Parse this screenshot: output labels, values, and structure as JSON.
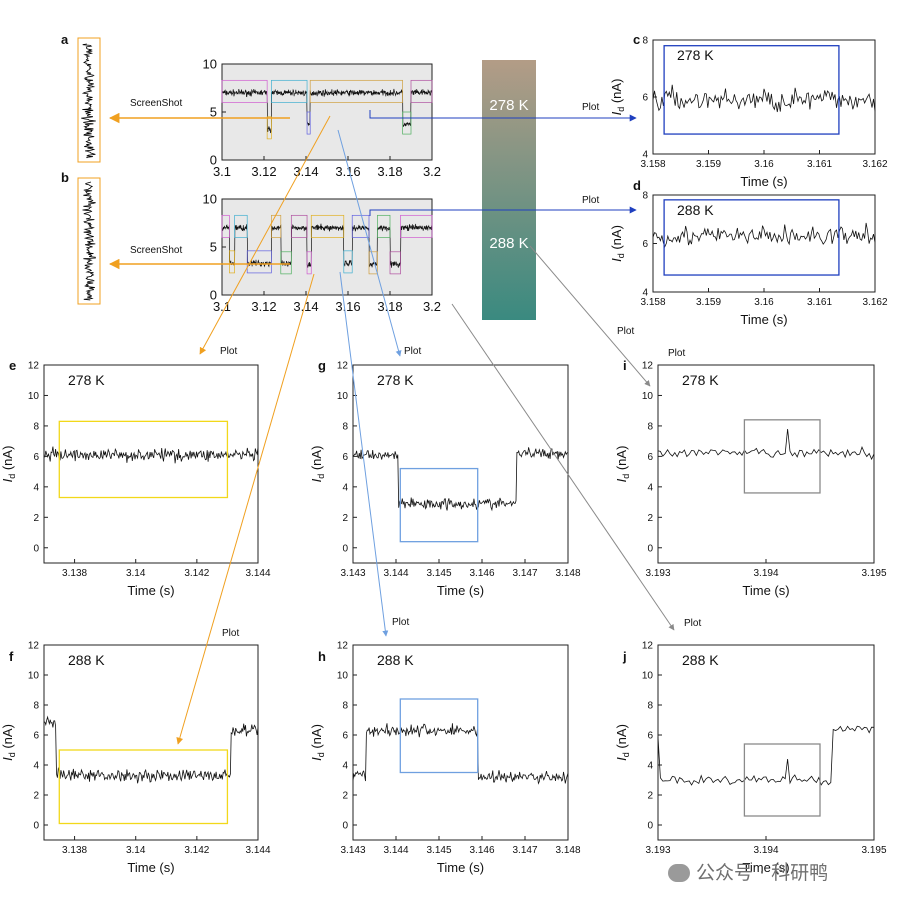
{
  "panel_letters": [
    "a",
    "b",
    "c",
    "d",
    "e",
    "f",
    "g",
    "h",
    "i",
    "j"
  ],
  "annotations": {
    "screenshot": "ScreenShot",
    "plot": "Plot"
  },
  "temperature_bar": {
    "top_label": "278 K",
    "bottom_label": "288 K",
    "top_color": "#b39c86",
    "bottom_color": "#3a8a80"
  },
  "watermark": "公众号 · 科研鸭",
  "colors": {
    "yellow": "#f2d81a",
    "orange": "#f0a020",
    "blue": "#1f3fbf",
    "light_blue": "#6fa0e0",
    "gray": "#8a8a8a"
  },
  "chart_data": [
    {
      "id": "overview-278",
      "type": "line",
      "xlim": [
        3.1,
        3.2
      ],
      "ylim": [
        0,
        10
      ],
      "xticks": [
        "3.1",
        "3.12",
        "3.14",
        "3.16",
        "3.18",
        "3.2"
      ],
      "yticks": [
        "0",
        "5",
        "10"
      ],
      "levels": [
        {
          "x0": 3.1,
          "x1": 3.1215,
          "y": 7.0
        },
        {
          "x0": 3.1215,
          "x1": 3.1235,
          "y": 3.2
        },
        {
          "x0": 3.1235,
          "x1": 3.1405,
          "y": 7.0
        },
        {
          "x0": 3.1405,
          "x1": 3.142,
          "y": 3.7
        },
        {
          "x0": 3.142,
          "x1": 3.186,
          "y": 7.0
        },
        {
          "x0": 3.186,
          "x1": 3.19,
          "y": 3.7
        },
        {
          "x0": 3.19,
          "x1": 3.2,
          "y": 7.0
        }
      ]
    },
    {
      "id": "overview-288",
      "type": "line",
      "xlim": [
        3.1,
        3.2
      ],
      "ylim": [
        0,
        10
      ],
      "xticks": [
        "3.1",
        "3.12",
        "3.14",
        "3.16",
        "3.18",
        "3.2"
      ],
      "yticks": [
        "0",
        "5",
        "10"
      ],
      "levels": [
        {
          "x0": 3.1,
          "x1": 3.1035,
          "y": 7.0
        },
        {
          "x0": 3.1035,
          "x1": 3.106,
          "y": 3.3
        },
        {
          "x0": 3.106,
          "x1": 3.112,
          "y": 7.0
        },
        {
          "x0": 3.112,
          "x1": 3.1235,
          "y": 3.3
        },
        {
          "x0": 3.1235,
          "x1": 3.128,
          "y": 7.0
        },
        {
          "x0": 3.128,
          "x1": 3.133,
          "y": 3.2
        },
        {
          "x0": 3.133,
          "x1": 3.1405,
          "y": 7.0
        },
        {
          "x0": 3.1405,
          "x1": 3.1425,
          "y": 3.2
        },
        {
          "x0": 3.1425,
          "x1": 3.158,
          "y": 7.0
        },
        {
          "x0": 3.158,
          "x1": 3.162,
          "y": 3.3
        },
        {
          "x0": 3.162,
          "x1": 3.17,
          "y": 7.0
        },
        {
          "x0": 3.17,
          "x1": 3.174,
          "y": 3.2
        },
        {
          "x0": 3.174,
          "x1": 3.18,
          "y": 7.0
        },
        {
          "x0": 3.18,
          "x1": 3.185,
          "y": 3.2
        },
        {
          "x0": 3.185,
          "x1": 3.2,
          "y": 7.0
        }
      ]
    },
    {
      "id": "c",
      "type": "line",
      "label": "278 K",
      "xlabel": "Time (s)",
      "ylabel": "Id (nA)",
      "xlim": [
        3.158,
        3.162
      ],
      "ylim": [
        4,
        8
      ],
      "xticks": [
        "3.158",
        "3.159",
        "3.16",
        "3.161",
        "3.162"
      ],
      "yticks": [
        "4",
        "6",
        "8"
      ],
      "levels": [
        {
          "x0": 3.158,
          "x1": 3.162,
          "y": 5.9
        }
      ],
      "noise": 0.45,
      "box": {
        "x0": 3.1582,
        "x1": 3.16135,
        "y0": 4.7,
        "y1": 7.8,
        "color": "#1f3fbf"
      }
    },
    {
      "id": "d",
      "type": "line",
      "label": "288 K",
      "xlabel": "Time (s)",
      "ylabel": "Id (nA)",
      "xlim": [
        3.158,
        3.162
      ],
      "ylim": [
        4,
        8
      ],
      "xticks": [
        "3.158",
        "3.159",
        "3.16",
        "3.161",
        "3.162"
      ],
      "yticks": [
        "4",
        "6",
        "8"
      ],
      "levels": [
        {
          "x0": 3.158,
          "x1": 3.162,
          "y": 6.3
        }
      ],
      "noise": 0.45,
      "box": {
        "x0": 3.1582,
        "x1": 3.16135,
        "y0": 4.7,
        "y1": 7.8,
        "color": "#1f3fbf"
      }
    },
    {
      "id": "e",
      "type": "line",
      "label": "278 K",
      "xlabel": "Time (s)",
      "ylabel": "Id (nA)",
      "xlim": [
        3.137,
        3.144
      ],
      "ylim": [
        -1,
        12
      ],
      "xticks": [
        "3.138",
        "3.14",
        "3.142",
        "3.144"
      ],
      "yticks": [
        "0",
        "2",
        "4",
        "6",
        "8",
        "10",
        "12"
      ],
      "levels": [
        {
          "x0": 3.137,
          "x1": 3.144,
          "y": 6.1
        }
      ],
      "noise": 0.45,
      "box": {
        "x0": 3.1375,
        "x1": 3.143,
        "y0": 3.3,
        "y1": 8.3,
        "color": "#f2d81a"
      }
    },
    {
      "id": "f",
      "type": "line",
      "label": "288 K",
      "xlabel": "Time (s)",
      "ylabel": "Id (nA)",
      "xlim": [
        3.137,
        3.144
      ],
      "ylim": [
        -1,
        12
      ],
      "xticks": [
        "3.138",
        "3.14",
        "3.142",
        "3.144"
      ],
      "yticks": [
        "0",
        "2",
        "4",
        "6",
        "8",
        "10",
        "12"
      ],
      "levels": [
        {
          "x0": 3.137,
          "x1": 3.1374,
          "y": 6.8
        },
        {
          "x0": 3.1374,
          "x1": 3.1431,
          "y": 3.3
        },
        {
          "x0": 3.1431,
          "x1": 3.144,
          "y": 6.3
        }
      ],
      "noise": 0.45,
      "box": {
        "x0": 3.1375,
        "x1": 3.143,
        "y0": 0.1,
        "y1": 5.0,
        "color": "#f2d81a"
      }
    },
    {
      "id": "g",
      "type": "line",
      "label": "278 K",
      "xlabel": "Time (s)",
      "ylabel": "Id (nA)",
      "xlim": [
        3.143,
        3.148
      ],
      "ylim": [
        -1,
        12
      ],
      "xticks": [
        "3.143",
        "3.144",
        "3.145",
        "3.146",
        "3.147",
        "3.148"
      ],
      "yticks": [
        "0",
        "2",
        "4",
        "6",
        "8",
        "10",
        "12"
      ],
      "levels": [
        {
          "x0": 3.143,
          "x1": 3.14405,
          "y": 6.1
        },
        {
          "x0": 3.14405,
          "x1": 3.1468,
          "y": 2.9
        },
        {
          "x0": 3.1468,
          "x1": 3.148,
          "y": 6.2
        }
      ],
      "noise": 0.4,
      "box": {
        "x0": 3.1441,
        "x1": 3.1459,
        "y0": 0.4,
        "y1": 5.2,
        "color": "#6fa0e0"
      }
    },
    {
      "id": "h",
      "type": "line",
      "label": "288 K",
      "xlabel": "Time (s)",
      "ylabel": "Id (nA)",
      "xlim": [
        3.143,
        3.148
      ],
      "ylim": [
        -1,
        12
      ],
      "xticks": [
        "3.143",
        "3.144",
        "3.145",
        "3.146",
        "3.147",
        "3.148"
      ],
      "yticks": [
        "0",
        "2",
        "4",
        "6",
        "8",
        "10",
        "12"
      ],
      "levels": [
        {
          "x0": 3.143,
          "x1": 3.1433,
          "y": 3.4
        },
        {
          "x0": 3.1433,
          "x1": 3.1459,
          "y": 6.3
        },
        {
          "x0": 3.1459,
          "x1": 3.148,
          "y": 3.2
        }
      ],
      "noise": 0.45,
      "box": {
        "x0": 3.1441,
        "x1": 3.1459,
        "y0": 3.5,
        "y1": 8.4,
        "color": "#6fa0e0"
      }
    },
    {
      "id": "i",
      "type": "line",
      "label": "278 K",
      "xlabel": "Time (s)",
      "ylabel": "Id (nA)",
      "xlim": [
        3.193,
        3.195
      ],
      "ylim": [
        -1,
        12
      ],
      "xticks": [
        "3.193",
        "3.194",
        "3.195"
      ],
      "yticks": [
        "0",
        "2",
        "4",
        "6",
        "8",
        "10",
        "12"
      ],
      "levels": [
        {
          "x0": 3.193,
          "x1": 3.195,
          "y": 6.2
        }
      ],
      "noise": 0.35,
      "spike": {
        "x": 3.1942,
        "y": 7.8
      },
      "box": {
        "x0": 3.1938,
        "x1": 3.1945,
        "y0": 3.6,
        "y1": 8.4,
        "color": "#8a8a8a"
      }
    },
    {
      "id": "j",
      "type": "line",
      "label": "288 K",
      "xlabel": "Time (s)",
      "ylabel": "Id (nA)",
      "xlim": [
        3.193,
        3.195
      ],
      "ylim": [
        -1,
        12
      ],
      "xticks": [
        "3.193",
        "3.194",
        "3.195"
      ],
      "yticks": [
        "0",
        "2",
        "4",
        "6",
        "8",
        "10",
        "12"
      ],
      "levels": [
        {
          "x0": 3.193,
          "x1": 3.19302,
          "y": 5.8
        },
        {
          "x0": 3.19302,
          "x1": 3.1946,
          "y": 3.0
        },
        {
          "x0": 3.1946,
          "x1": 3.195,
          "y": 6.4
        }
      ],
      "noise": 0.35,
      "spike": {
        "x": 3.1942,
        "y": 4.4
      },
      "box": {
        "x0": 3.1938,
        "x1": 3.1945,
        "y0": 0.6,
        "y1": 5.4,
        "color": "#8a8a8a"
      }
    }
  ]
}
